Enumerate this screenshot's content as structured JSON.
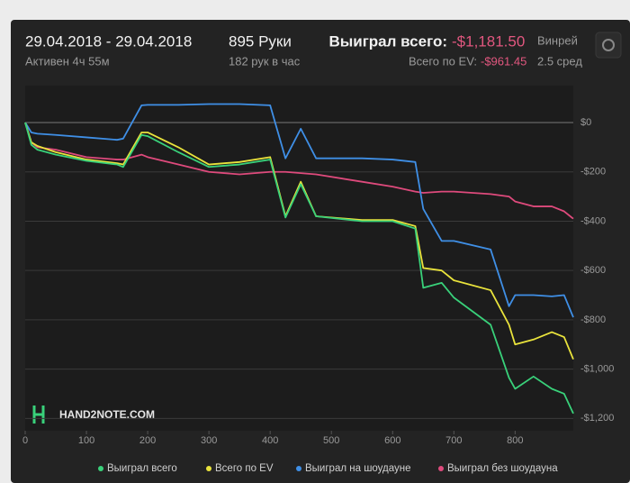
{
  "header": {
    "date_range": "29.04.2018 - 29.04.2018",
    "active": "Активен 4ч 55м",
    "hands": "895 Руки",
    "hands_per_hour": "182 рук в час",
    "won_label": "Выиграл всего:",
    "won_value": "-$1,181.50",
    "ev_label": "Всего по EV:",
    "ev_value": "-$961.45",
    "winrate_label": "Винрей",
    "winrate_value": "2.5 сред"
  },
  "logo": "HAND2NOTE.COM",
  "chart_data": {
    "type": "line",
    "x": [
      0,
      10,
      20,
      50,
      100,
      150,
      160,
      190,
      200,
      250,
      300,
      350,
      400,
      425,
      450,
      475,
      550,
      600,
      637,
      650,
      680,
      700,
      760,
      790,
      800,
      830,
      860,
      880,
      895
    ],
    "series": [
      {
        "name": "Выиграл всего",
        "color": "#39d17a",
        "values": [
          0,
          -90,
          -110,
          -130,
          -155,
          -170,
          -180,
          -50,
          -55,
          -120,
          -180,
          -170,
          -150,
          -385,
          -250,
          -380,
          -400,
          -400,
          -430,
          -670,
          -650,
          -710,
          -820,
          -1035,
          -1080,
          -1030,
          -1080,
          -1100,
          -1180
        ]
      },
      {
        "name": "Всего по EV",
        "color": "#e9e33c",
        "values": [
          0,
          -80,
          -95,
          -120,
          -150,
          -165,
          -170,
          -40,
          -40,
          -100,
          -170,
          -160,
          -140,
          -380,
          -240,
          -380,
          -395,
          -395,
          -420,
          -590,
          -600,
          -640,
          -680,
          -820,
          -900,
          -880,
          -850,
          -870,
          -960
        ]
      },
      {
        "name": "Выиграл на шоудауне",
        "color": "#3f8fe6",
        "values": [
          0,
          -40,
          -45,
          -50,
          -60,
          -70,
          -65,
          70,
          72,
          72,
          75,
          75,
          70,
          -145,
          -25,
          -145,
          -145,
          -150,
          -160,
          -350,
          -480,
          -480,
          -515,
          -745,
          -700,
          -700,
          -705,
          -700,
          -790
        ]
      },
      {
        "name": "Выиграл без шоудауна",
        "color": "#de4a7c",
        "values": [
          0,
          -80,
          -100,
          -110,
          -140,
          -150,
          -150,
          -130,
          -140,
          -170,
          -200,
          -210,
          -200,
          -200,
          -205,
          -210,
          -240,
          -260,
          -280,
          -285,
          -280,
          -280,
          -290,
          -300,
          -320,
          -340,
          -340,
          -360,
          -390
        ]
      }
    ],
    "xlim": [
      0,
      895
    ],
    "xticks": [
      0,
      100,
      200,
      300,
      400,
      500,
      600,
      700,
      800
    ],
    "ylim": [
      -1250,
      150
    ],
    "yticks": [
      {
        "value": 0,
        "label": "$0"
      },
      {
        "value": -200,
        "label": "-$200"
      },
      {
        "value": -400,
        "label": "-$400"
      },
      {
        "value": -600,
        "label": "-$600"
      },
      {
        "value": -800,
        "label": "-$800"
      },
      {
        "value": -1000,
        "label": "-$1,000"
      },
      {
        "value": -1200,
        "label": "-$1,200"
      }
    ],
    "grid": true
  }
}
